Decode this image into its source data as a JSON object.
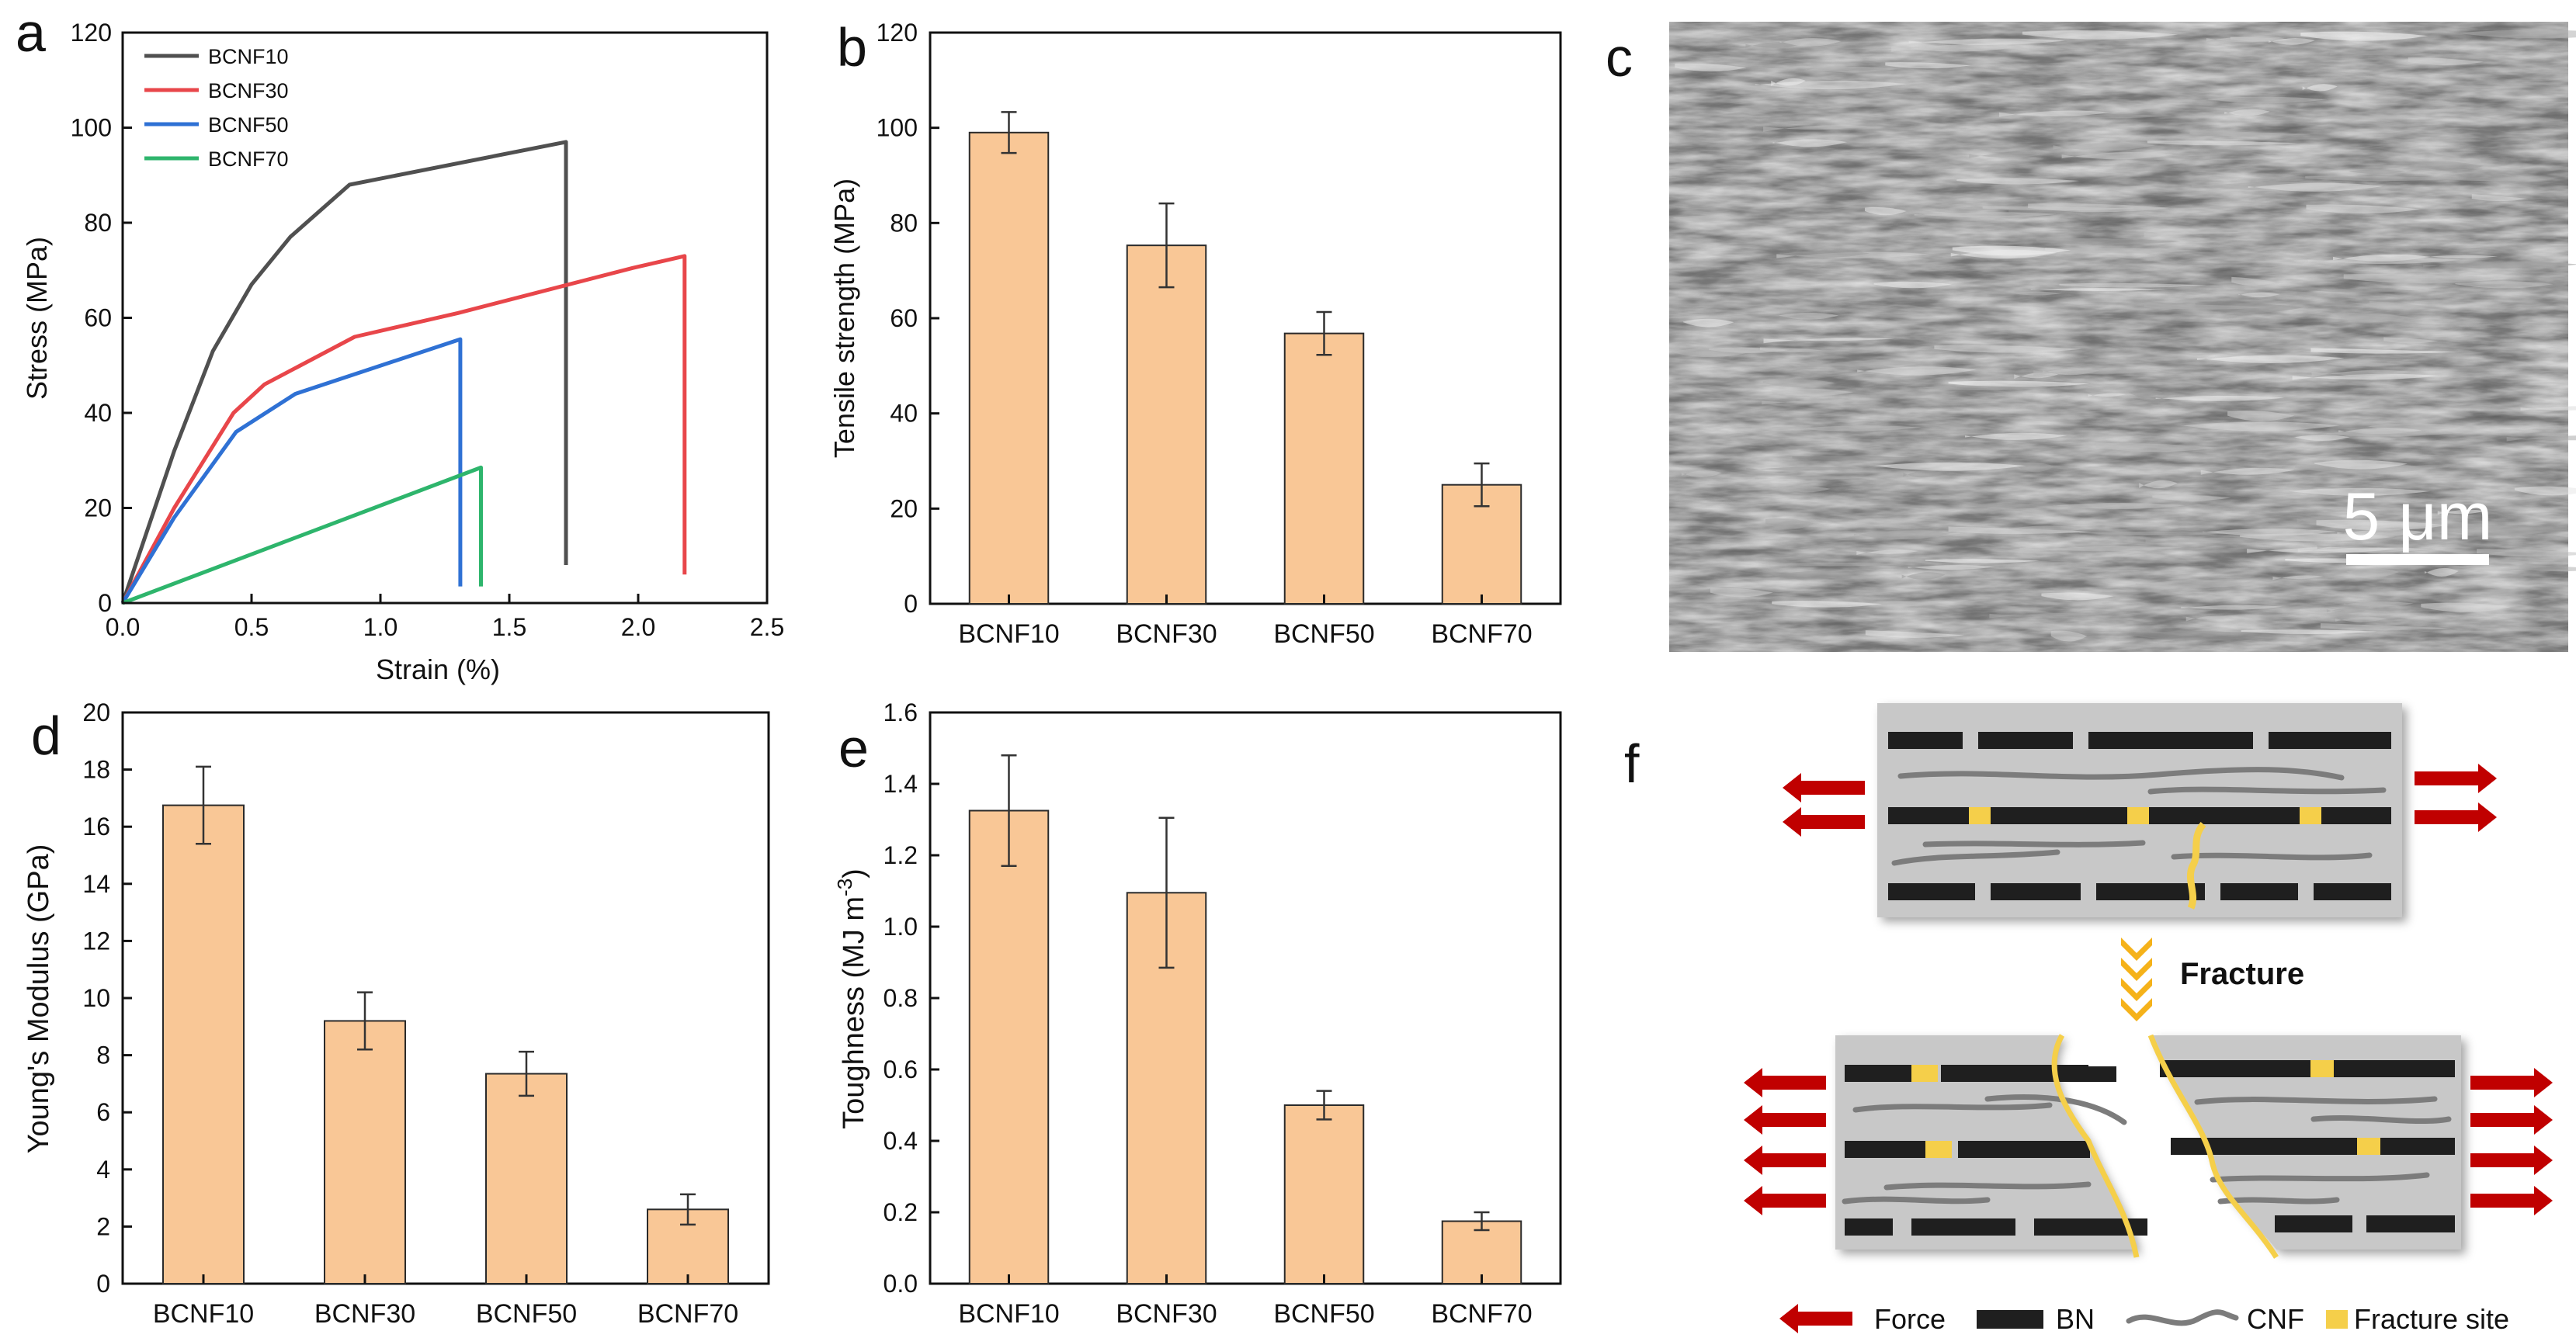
{
  "colors": {
    "bar_fill": "#f9c796",
    "bar_stroke": "#2a2a2a",
    "bn": "#1f1f1f",
    "cnf": "#7c7c7c",
    "fracture": "#f5cf4a",
    "force": "#c00000",
    "matrix": "#c8c8c8"
  },
  "chart_data": [
    {
      "panel": "a",
      "type": "line",
      "xlabel": "Strain (%)",
      "ylabel": "Stress (MPa)",
      "xlim": [
        0,
        2.5
      ],
      "ylim": [
        0,
        120
      ],
      "xticks": [
        "0.0",
        "0.5",
        "1.0",
        "1.5",
        "2.0",
        "2.5"
      ],
      "yticks": [
        "0",
        "20",
        "40",
        "60",
        "80",
        "100",
        "120"
      ],
      "legend_position": "top-left",
      "series": [
        {
          "name": "BCNF10",
          "color": "#505050",
          "x": [
            0,
            0.2,
            0.35,
            0.5,
            0.65,
            0.88,
            1.72,
            1.72
          ],
          "y": [
            0,
            32,
            53,
            67,
            77,
            88,
            97,
            8
          ]
        },
        {
          "name": "BCNF30",
          "color": "#e8464a",
          "x": [
            0,
            0.2,
            0.43,
            0.55,
            0.9,
            1.3,
            1.98,
            2.18,
            2.18
          ],
          "y": [
            0,
            20,
            40,
            46,
            56,
            61,
            70.5,
            73,
            6
          ]
        },
        {
          "name": "BCNF50",
          "color": "#2f71d4",
          "x": [
            0,
            0.2,
            0.44,
            0.67,
            1.31,
            1.31
          ],
          "y": [
            0,
            18,
            36,
            44,
            55.5,
            3.5
          ]
        },
        {
          "name": "BCNF70",
          "color": "#2eb56c",
          "x": [
            0,
            1.39,
            1.39
          ],
          "y": [
            0,
            28.5,
            3.5
          ]
        }
      ]
    },
    {
      "panel": "b",
      "type": "bar",
      "categories": [
        "BCNF10",
        "BCNF30",
        "BCNF50",
        "BCNF70"
      ],
      "values": [
        99,
        75.3,
        56.8,
        25
      ],
      "errors": [
        4.3,
        8.8,
        4.5,
        4.5
      ],
      "ylabel": "Tensile strength (MPa)",
      "xlabel": "",
      "ylim": [
        0,
        120
      ],
      "yticks": [
        "0",
        "20",
        "40",
        "60",
        "80",
        "100",
        "120"
      ]
    },
    {
      "panel": "d",
      "type": "bar",
      "categories": [
        "BCNF10",
        "BCNF30",
        "BCNF50",
        "BCNF70"
      ],
      "values": [
        16.75,
        9.2,
        7.35,
        2.6
      ],
      "errors": [
        1.35,
        1.0,
        0.77,
        0.53
      ],
      "ylabel": "Young's Modulus (GPa)",
      "xlabel": "",
      "ylim": [
        0,
        20
      ],
      "yticks": [
        "0",
        "2",
        "4",
        "6",
        "8",
        "10",
        "12",
        "14",
        "16",
        "18",
        "20"
      ]
    },
    {
      "panel": "e",
      "type": "bar",
      "categories": [
        "BCNF10",
        "BCNF30",
        "BCNF50",
        "BCNF70"
      ],
      "values": [
        1.325,
        1.095,
        0.5,
        0.175
      ],
      "errors": [
        0.155,
        0.21,
        0.04,
        0.025
      ],
      "ylabel_main": "Toughness (MJ m",
      "ylabel_sup": "-3",
      "ylabel_end": ")",
      "xlabel": "",
      "ylim": [
        0,
        1.6
      ],
      "yticks": [
        "0.0",
        "0.2",
        "0.4",
        "0.6",
        "0.8",
        "1.0",
        "1.2",
        "1.4",
        "1.6"
      ]
    }
  ],
  "panel_labels": {
    "a": "a",
    "b": "b",
    "c": "c",
    "d": "d",
    "e": "e",
    "f": "f"
  },
  "sem": {
    "scale_bar_label": "5 μm"
  },
  "schematic": {
    "fracture_label": "Fracture",
    "legend": {
      "force": "Force",
      "bn": "BN",
      "cnf": "CNF",
      "fracture_site": "Fracture site"
    }
  }
}
